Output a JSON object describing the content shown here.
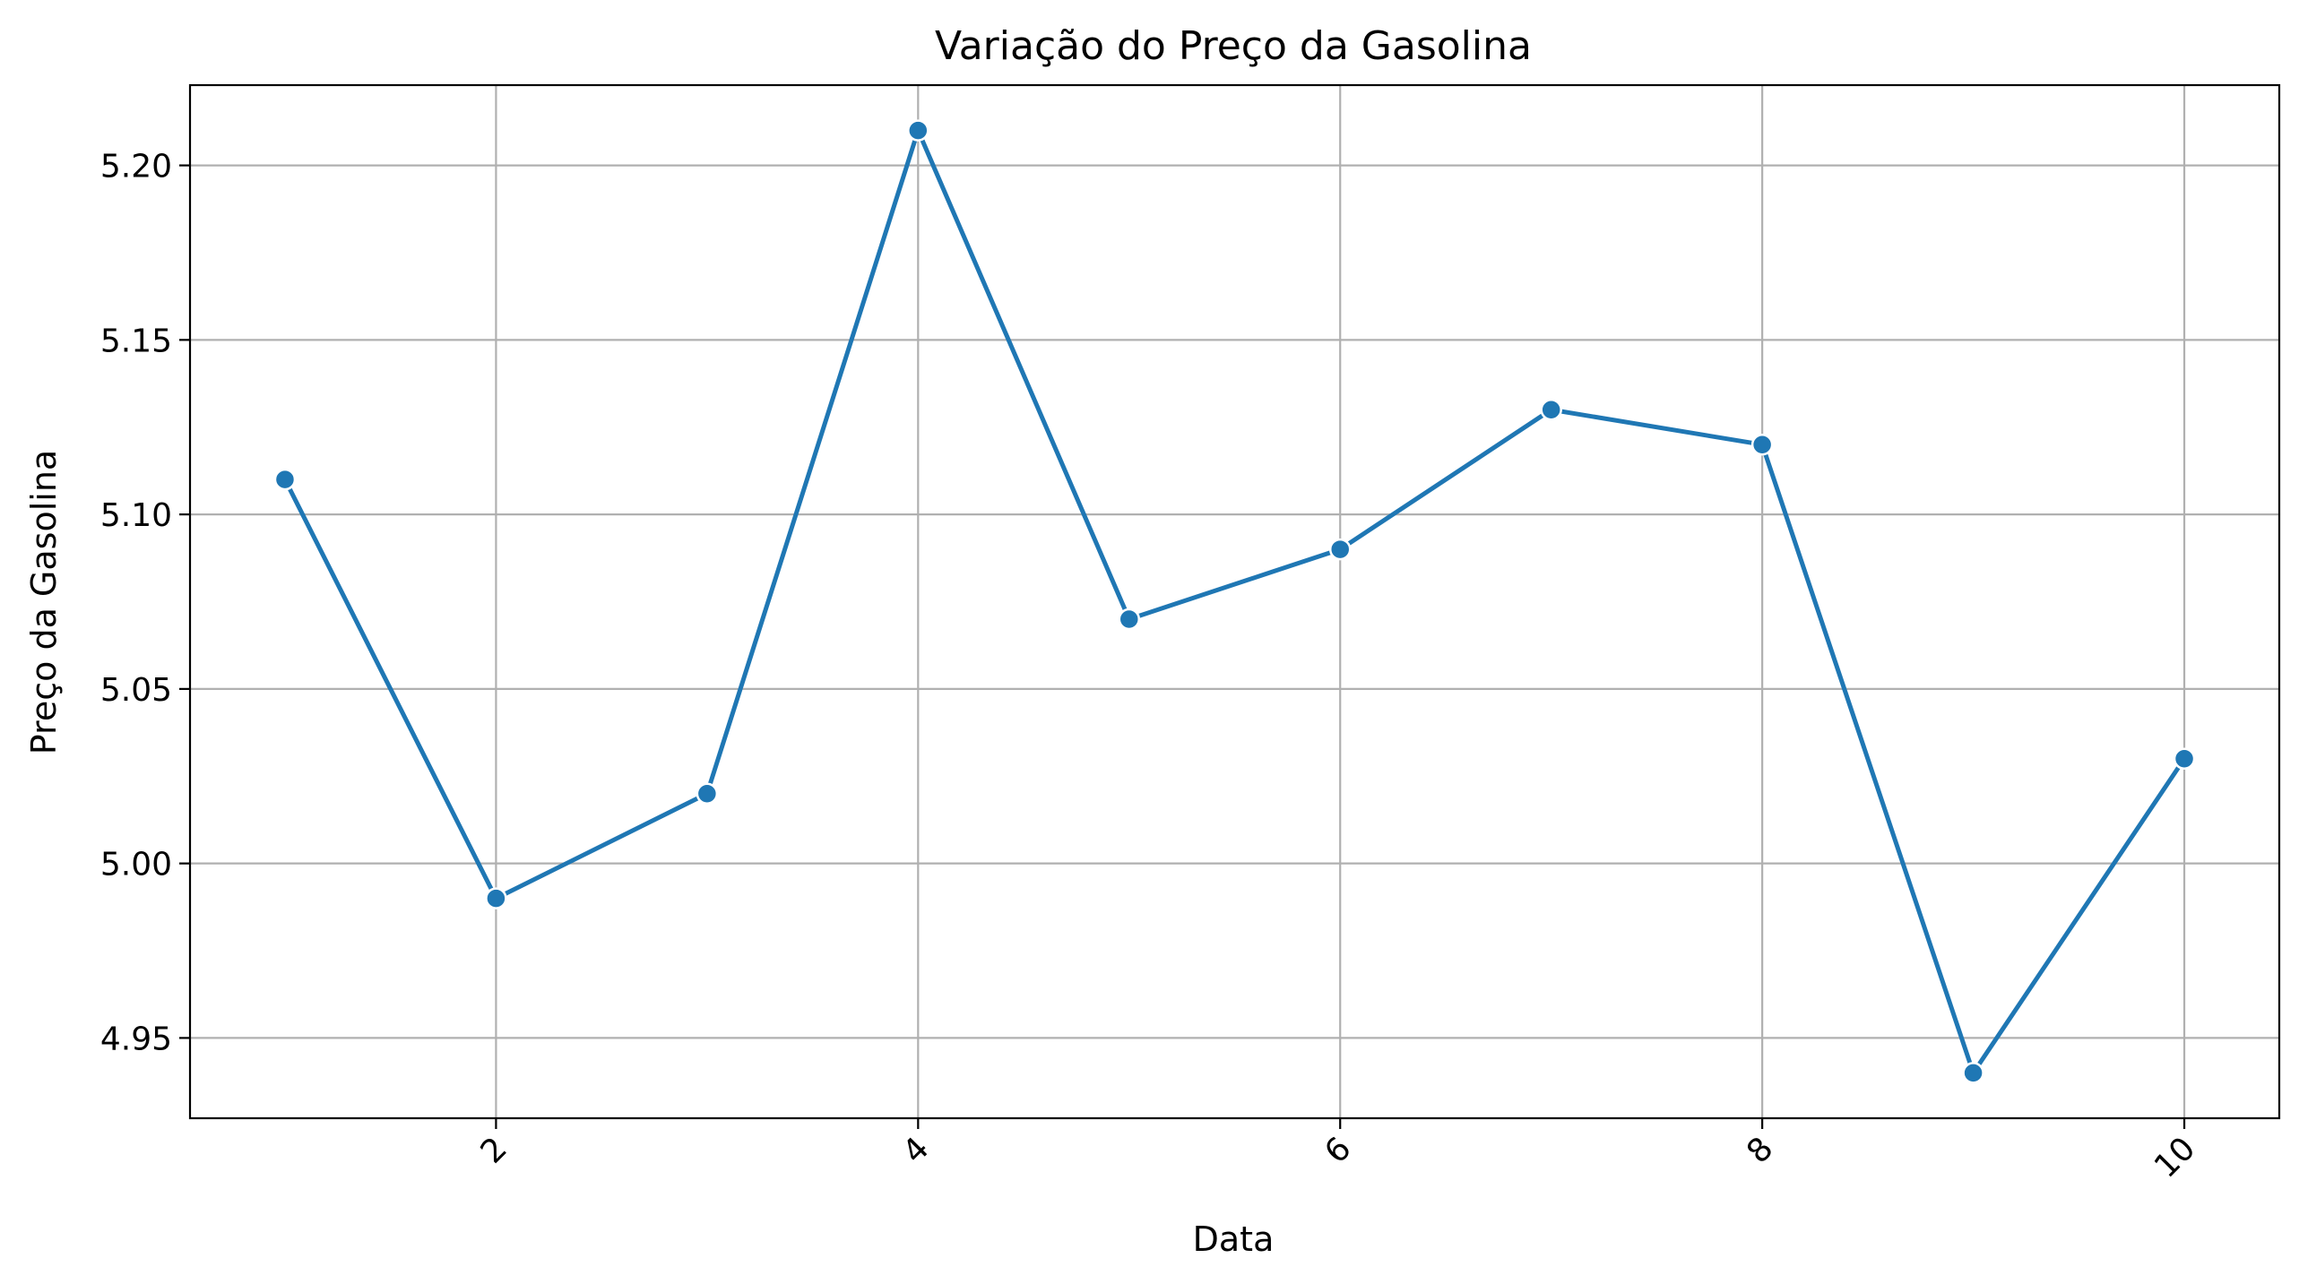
{
  "chart_data": {
    "type": "line",
    "title": "Variação do Preço da Gasolina",
    "xlabel": "Data",
    "ylabel": "Preço da Gasolina",
    "xlim": [
      0.55,
      10.45
    ],
    "ylim": [
      4.927,
      5.223
    ],
    "xticks": [
      2,
      4,
      6,
      8,
      10
    ],
    "xtick_labels": [
      "2",
      "4",
      "6",
      "8",
      "10"
    ],
    "yticks": [
      4.95,
      5.0,
      5.05,
      5.1,
      5.15,
      5.2
    ],
    "ytick_labels": [
      "4.95",
      "5.00",
      "5.05",
      "5.10",
      "5.15",
      "5.20"
    ],
    "grid": true,
    "series": [
      {
        "x": [
          1,
          2,
          3,
          4,
          5,
          6,
          7,
          8,
          9,
          10
        ],
        "y": [
          5.11,
          4.99,
          5.02,
          5.21,
          5.07,
          5.09,
          5.13,
          5.12,
          4.94,
          5.03
        ],
        "color": "#1f77b4",
        "marker": "circle"
      }
    ]
  }
}
